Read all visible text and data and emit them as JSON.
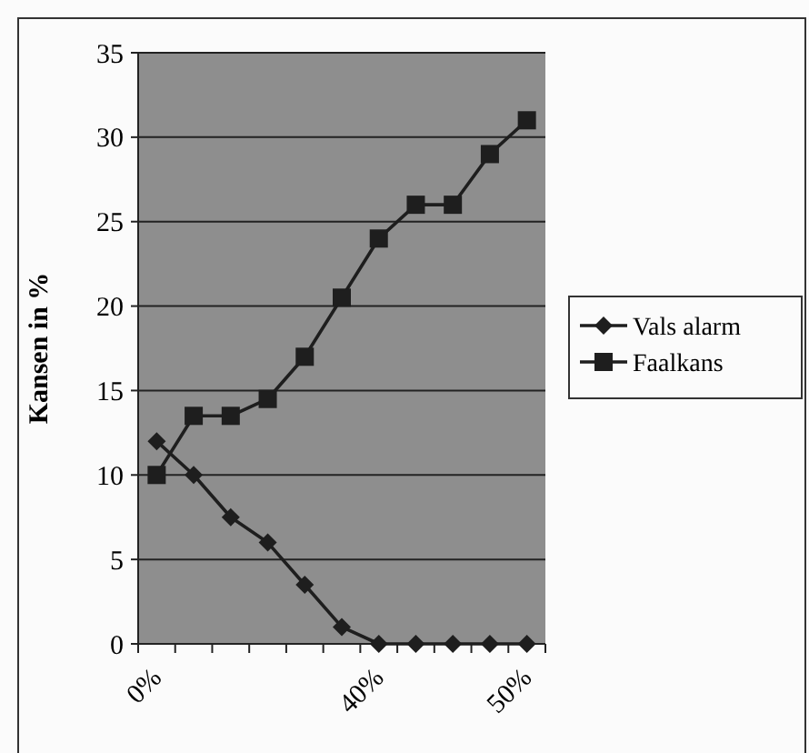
{
  "chart_data": {
    "type": "line",
    "ylabel": "Kansen in %",
    "categories": [
      "0%",
      null,
      null,
      null,
      null,
      null,
      "40%",
      null,
      null,
      null,
      "50%"
    ],
    "ylim": [
      0,
      35
    ],
    "yticks": [
      0,
      5,
      10,
      15,
      20,
      25,
      30,
      35
    ],
    "grid": "y",
    "legend": "right",
    "series": [
      {
        "name": "Vals alarm",
        "color": "#1e1e1e",
        "marker": "diamond",
        "values": [
          12,
          10,
          7.5,
          6,
          3.5,
          1,
          0,
          0,
          0,
          0,
          0
        ]
      },
      {
        "name": "Faalkans",
        "color": "#1e1e1e",
        "marker": "square",
        "values": [
          10,
          13.5,
          13.5,
          14.5,
          17,
          20.5,
          24,
          26,
          26,
          29,
          31
        ]
      }
    ]
  }
}
